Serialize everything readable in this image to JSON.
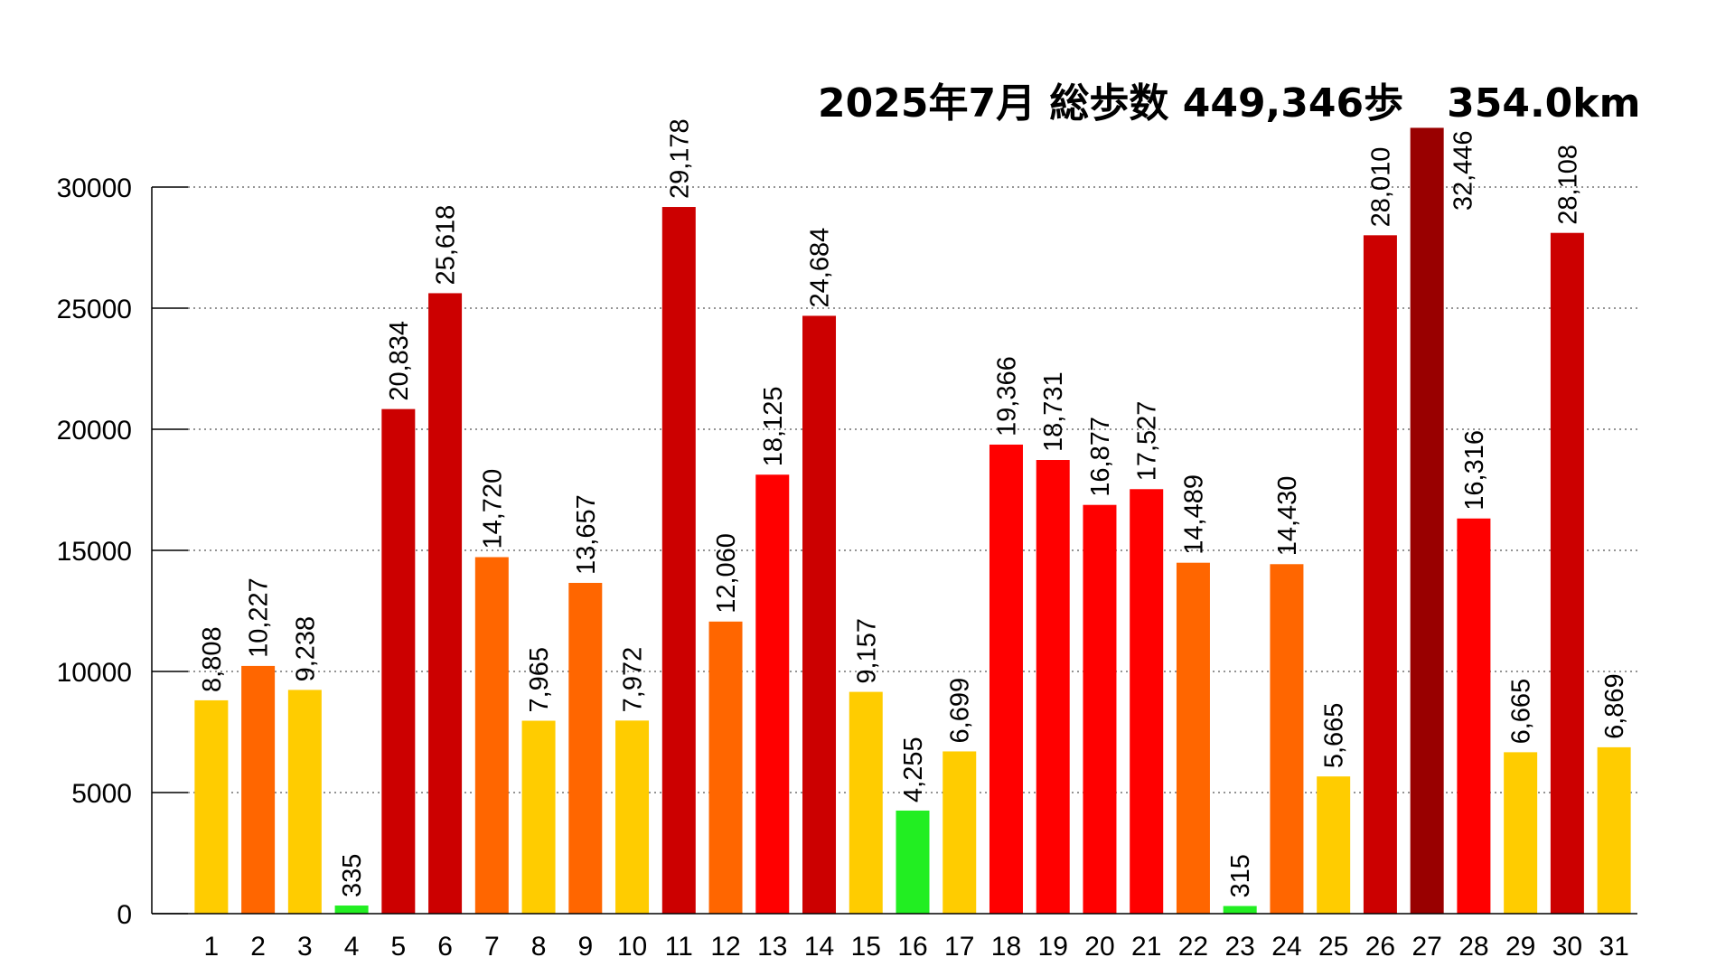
{
  "chart_data": {
    "type": "bar",
    "title_prefix": "2025年7月 総歩数 449,346歩",
    "title_distance": "354.0km",
    "xlabel": "",
    "ylabel": "",
    "ylim": [
      0,
      32446
    ],
    "yticks": [
      0,
      5000,
      10000,
      15000,
      20000,
      25000,
      30000
    ],
    "grid": "horizontal dotted",
    "categories": [
      "1",
      "2",
      "3",
      "4",
      "5",
      "6",
      "7",
      "8",
      "9",
      "10",
      "11",
      "12",
      "13",
      "14",
      "15",
      "16",
      "17",
      "18",
      "19",
      "20",
      "21",
      "22",
      "23",
      "24",
      "25",
      "26",
      "27",
      "28",
      "29",
      "30",
      "31"
    ],
    "values": [
      8808,
      10227,
      9238,
      335,
      20834,
      25618,
      14720,
      7965,
      13657,
      7972,
      29178,
      12060,
      18125,
      24684,
      9157,
      4255,
      6699,
      19366,
      18731,
      16877,
      17527,
      14489,
      315,
      14430,
      5665,
      28010,
      32446,
      16316,
      6665,
      28108,
      6869
    ],
    "labels": [
      "8,808",
      "10,227",
      "9,238",
      "335",
      "20,834",
      "25,618",
      "14,720",
      "7,965",
      "13,657",
      "7,972",
      "29,178",
      "12,060",
      "18,125",
      "24,684",
      "9,157",
      "4,255",
      "6,699",
      "19,366",
      "18,731",
      "16,877",
      "17,527",
      "14,489",
      "315",
      "14,430",
      "5,665",
      "28,010",
      "32,446",
      "16,316",
      "6,665",
      "28,108",
      "6,869"
    ],
    "colors": {
      "green": "#22ee22",
      "yellow": "#ffcc00",
      "orange": "#ff6600",
      "red": "#ff0000",
      "dark_red": "#cc0000",
      "darkest_red": "#990000"
    }
  }
}
